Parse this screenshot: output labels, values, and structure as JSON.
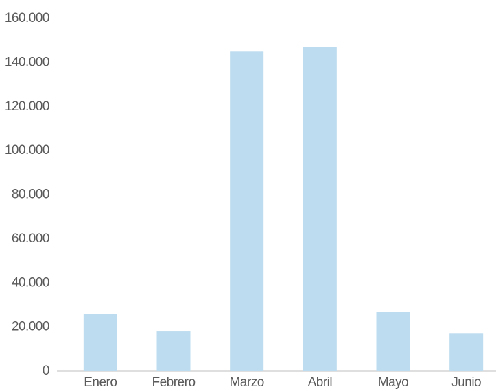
{
  "chart_data": {
    "type": "bar",
    "categories": [
      "Enero",
      "Febrero",
      "Marzo",
      "Abril",
      "Mayo",
      "Junio"
    ],
    "values": [
      26000,
      18000,
      145000,
      147000,
      27000,
      17000
    ],
    "color": "#bddcf0",
    "ylim": [
      0,
      160000
    ],
    "yticks": [
      0,
      {
        "value": 20000,
        "label": "20.000"
      },
      {
        "value": 40000,
        "label": "40.000"
      },
      {
        "value": 60000,
        "label": "60.000"
      },
      {
        "value": 80000,
        "label": "80.000"
      },
      {
        "value": 100000,
        "label": "100.000"
      },
      {
        "value": 120000,
        "label": "120.000"
      },
      {
        "value": 140000,
        "label": "140.000"
      },
      {
        "value": 160000,
        "label": "160.000"
      }
    ],
    "grid": false
  }
}
